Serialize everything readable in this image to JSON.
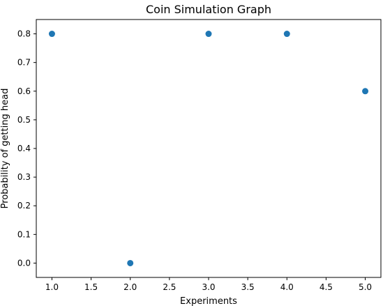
{
  "chart_data": {
    "type": "scatter",
    "title": "Coin Simulation Graph",
    "xlabel": "Experiments",
    "ylabel": "Probability of getting head",
    "x": [
      1,
      2,
      3,
      4,
      5
    ],
    "y": [
      0.8,
      0.0,
      0.8,
      0.8,
      0.6
    ],
    "xlim": [
      0.8,
      5.2
    ],
    "ylim": [
      -0.05,
      0.85
    ],
    "xticks": [
      1.0,
      1.5,
      2.0,
      2.5,
      3.0,
      3.5,
      4.0,
      4.5,
      5.0
    ],
    "xtick_labels": [
      "1.0",
      "1.5",
      "2.0",
      "2.5",
      "3.0",
      "3.5",
      "4.0",
      "4.5",
      "5.0"
    ],
    "yticks": [
      0.0,
      0.1,
      0.2,
      0.3,
      0.4,
      0.5,
      0.6,
      0.7,
      0.8
    ],
    "ytick_labels": [
      "0.0",
      "0.1",
      "0.2",
      "0.3",
      "0.4",
      "0.5",
      "0.6",
      "0.7",
      "0.8"
    ],
    "grid": false,
    "marker_color": "#1f77b4"
  }
}
